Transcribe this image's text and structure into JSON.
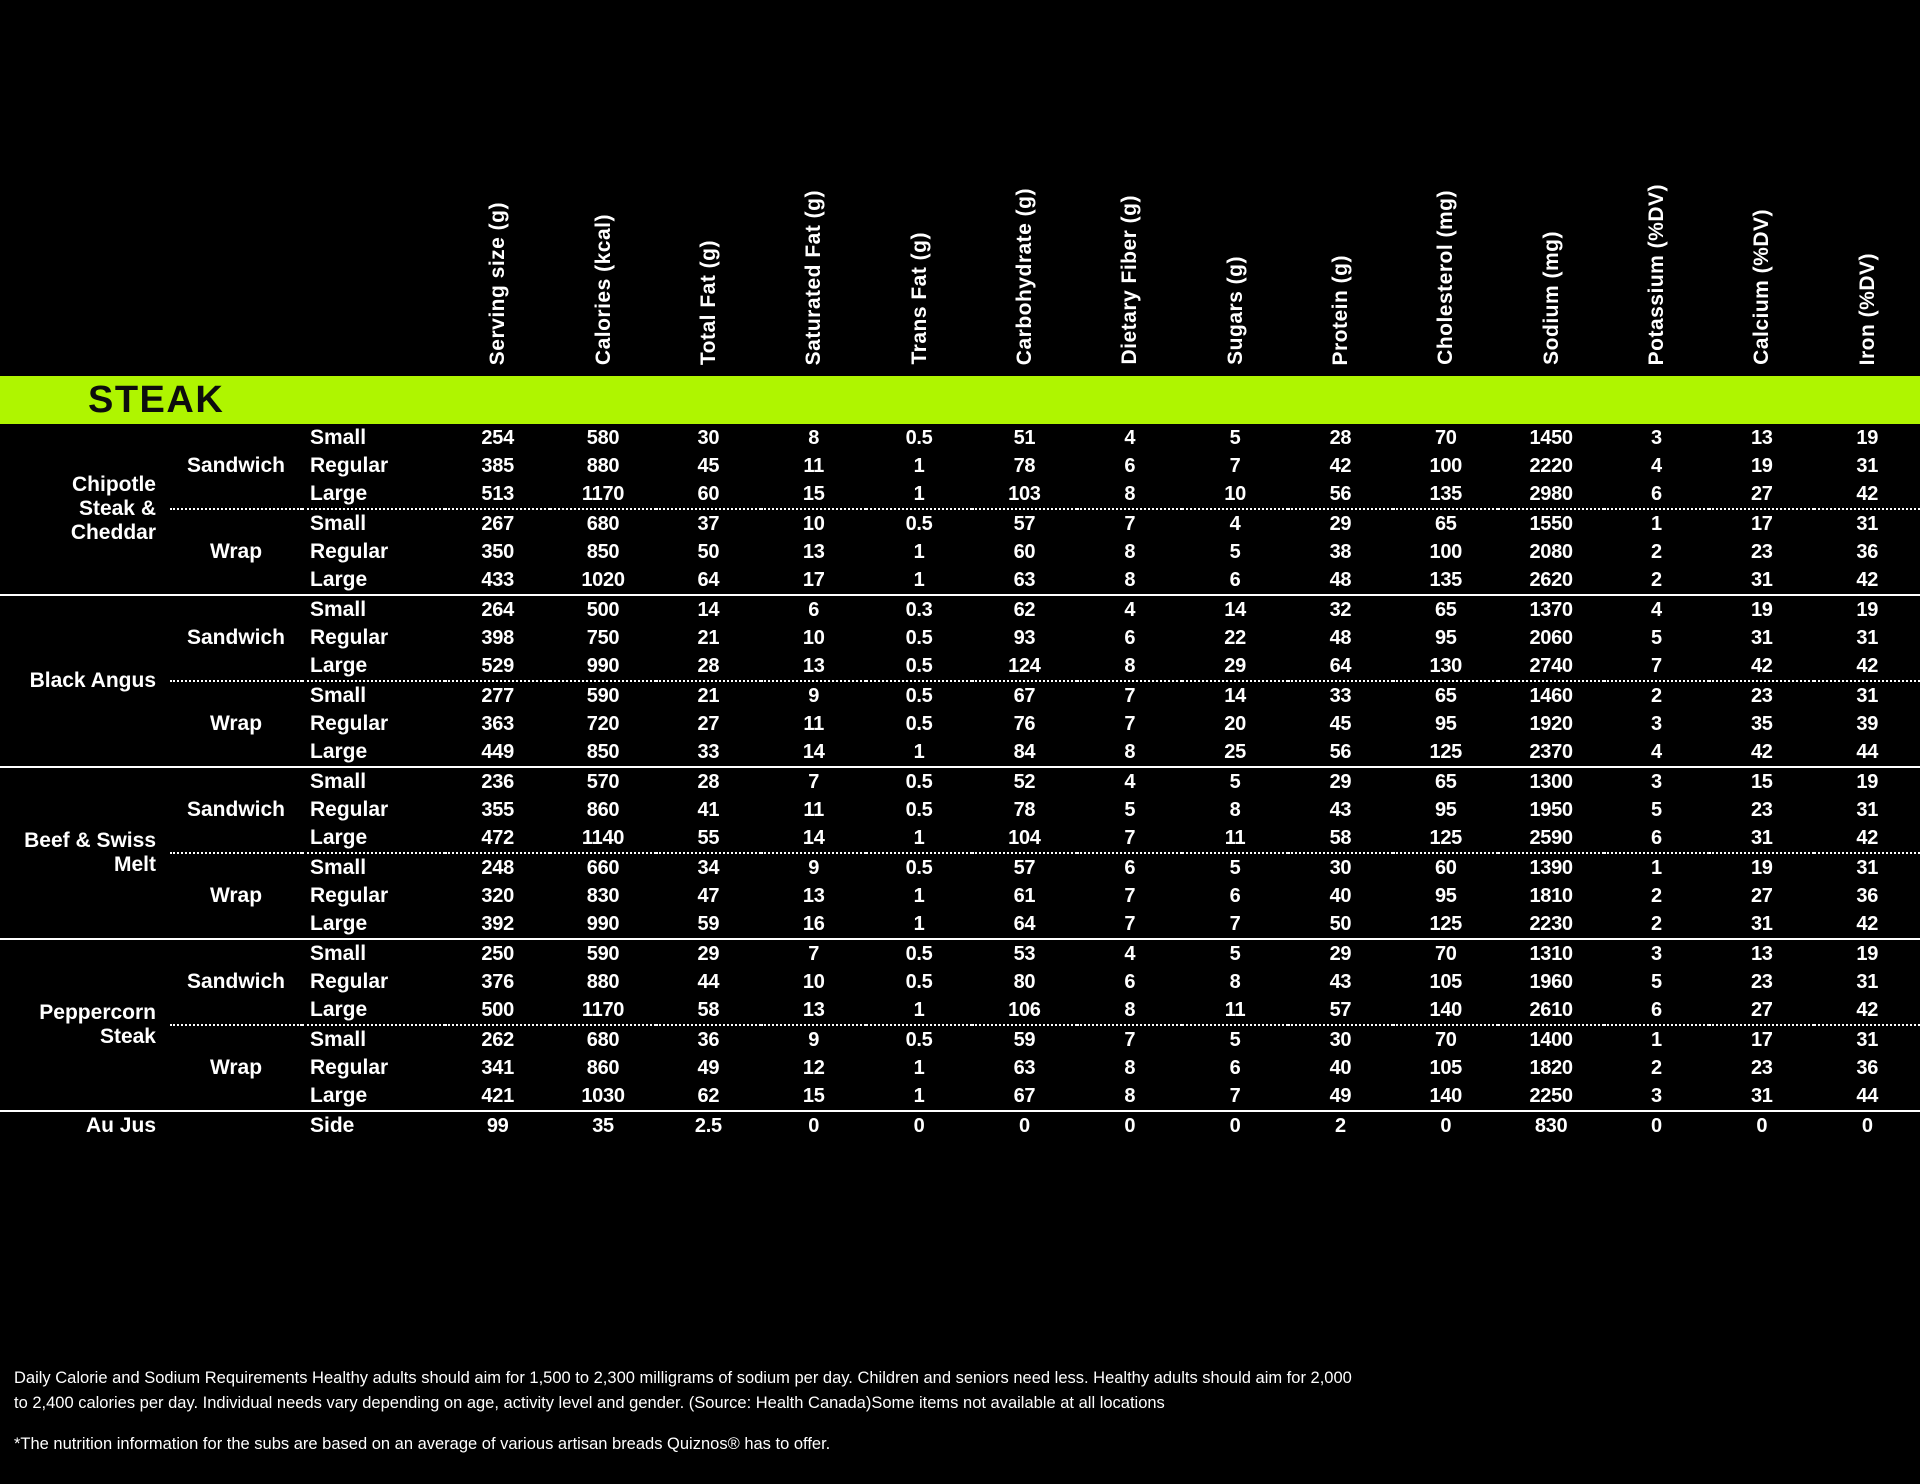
{
  "table": {
    "section_title": "STEAK",
    "accent_color": "#aff500",
    "columns": [
      "Serving size (g)",
      "Calories (kcal)",
      "Total Fat (g)",
      "Saturated Fat (g)",
      "Trans Fat (g)",
      "Carbohydrate (g)",
      "Dietary Fiber (g)",
      "Sugars (g)",
      "Protein (g)",
      "Cholesterol (mg)",
      "Sodium (mg)",
      "Potassium (%DV)",
      "Calcium (%DV)",
      "Iron (%DV)"
    ],
    "groups": [
      {
        "name": "Chipotle Steak & Cheddar",
        "subgroups": [
          {
            "type": "Sandwich",
            "rows": [
              {
                "size": "Small",
                "values": [
                  254,
                  580,
                  30,
                  8,
                  0.5,
                  51,
                  4,
                  5,
                  28,
                  70,
                  1450,
                  3,
                  13,
                  19
                ]
              },
              {
                "size": "Regular",
                "values": [
                  385,
                  880,
                  45,
                  11,
                  1,
                  78,
                  6,
                  7,
                  42,
                  100,
                  2220,
                  4,
                  19,
                  31
                ]
              },
              {
                "size": "Large",
                "values": [
                  513,
                  1170,
                  60,
                  15,
                  1,
                  103,
                  8,
                  10,
                  56,
                  135,
                  2980,
                  6,
                  27,
                  42
                ]
              }
            ]
          },
          {
            "type": "Wrap",
            "rows": [
              {
                "size": "Small",
                "values": [
                  267,
                  680,
                  37,
                  10,
                  0.5,
                  57,
                  7,
                  4,
                  29,
                  65,
                  1550,
                  1,
                  17,
                  31
                ]
              },
              {
                "size": "Regular",
                "values": [
                  350,
                  850,
                  50,
                  13,
                  1,
                  60,
                  8,
                  5,
                  38,
                  100,
                  2080,
                  2,
                  23,
                  36
                ]
              },
              {
                "size": "Large",
                "values": [
                  433,
                  1020,
                  64,
                  17,
                  1,
                  63,
                  8,
                  6,
                  48,
                  135,
                  2620,
                  2,
                  31,
                  42
                ]
              }
            ]
          }
        ]
      },
      {
        "name": "Black Angus",
        "subgroups": [
          {
            "type": "Sandwich",
            "rows": [
              {
                "size": "Small",
                "values": [
                  264,
                  500,
                  14,
                  6,
                  0.3,
                  62,
                  4,
                  14,
                  32,
                  65,
                  1370,
                  4,
                  19,
                  19
                ]
              },
              {
                "size": "Regular",
                "values": [
                  398,
                  750,
                  21,
                  10,
                  0.5,
                  93,
                  6,
                  22,
                  48,
                  95,
                  2060,
                  5,
                  31,
                  31
                ]
              },
              {
                "size": "Large",
                "values": [
                  529,
                  990,
                  28,
                  13,
                  0.5,
                  124,
                  8,
                  29,
                  64,
                  130,
                  2740,
                  7,
                  42,
                  42
                ]
              }
            ]
          },
          {
            "type": "Wrap",
            "rows": [
              {
                "size": "Small",
                "values": [
                  277,
                  590,
                  21,
                  9,
                  0.5,
                  67,
                  7,
                  14,
                  33,
                  65,
                  1460,
                  2,
                  23,
                  31
                ]
              },
              {
                "size": "Regular",
                "values": [
                  363,
                  720,
                  27,
                  11,
                  0.5,
                  76,
                  7,
                  20,
                  45,
                  95,
                  1920,
                  3,
                  35,
                  39
                ]
              },
              {
                "size": "Large",
                "values": [
                  449,
                  850,
                  33,
                  14,
                  1,
                  84,
                  8,
                  25,
                  56,
                  125,
                  2370,
                  4,
                  42,
                  44
                ]
              }
            ]
          }
        ]
      },
      {
        "name": "Beef & Swiss Melt",
        "subgroups": [
          {
            "type": "Sandwich",
            "rows": [
              {
                "size": "Small",
                "values": [
                  236,
                  570,
                  28,
                  7,
                  0.5,
                  52,
                  4,
                  5,
                  29,
                  65,
                  1300,
                  3,
                  15,
                  19
                ]
              },
              {
                "size": "Regular",
                "values": [
                  355,
                  860,
                  41,
                  11,
                  0.5,
                  78,
                  5,
                  8,
                  43,
                  95,
                  1950,
                  5,
                  23,
                  31
                ]
              },
              {
                "size": "Large",
                "values": [
                  472,
                  1140,
                  55,
                  14,
                  1,
                  104,
                  7,
                  11,
                  58,
                  125,
                  2590,
                  6,
                  31,
                  42
                ]
              }
            ]
          },
          {
            "type": "Wrap",
            "rows": [
              {
                "size": "Small",
                "values": [
                  248,
                  660,
                  34,
                  9,
                  0.5,
                  57,
                  6,
                  5,
                  30,
                  60,
                  1390,
                  1,
                  19,
                  31
                ]
              },
              {
                "size": "Regular",
                "values": [
                  320,
                  830,
                  47,
                  13,
                  1,
                  61,
                  7,
                  6,
                  40,
                  95,
                  1810,
                  2,
                  27,
                  36
                ]
              },
              {
                "size": "Large",
                "values": [
                  392,
                  990,
                  59,
                  16,
                  1,
                  64,
                  7,
                  7,
                  50,
                  125,
                  2230,
                  2,
                  31,
                  42
                ]
              }
            ]
          }
        ]
      },
      {
        "name": "Peppercorn Steak",
        "subgroups": [
          {
            "type": "Sandwich",
            "rows": [
              {
                "size": "Small",
                "values": [
                  250,
                  590,
                  29,
                  7,
                  0.5,
                  53,
                  4,
                  5,
                  29,
                  70,
                  1310,
                  3,
                  13,
                  19
                ]
              },
              {
                "size": "Regular",
                "values": [
                  376,
                  880,
                  44,
                  10,
                  0.5,
                  80,
                  6,
                  8,
                  43,
                  105,
                  1960,
                  5,
                  23,
                  31
                ]
              },
              {
                "size": "Large",
                "values": [
                  500,
                  1170,
                  58,
                  13,
                  1,
                  106,
                  8,
                  11,
                  57,
                  140,
                  2610,
                  6,
                  27,
                  42
                ]
              }
            ]
          },
          {
            "type": "Wrap",
            "rows": [
              {
                "size": "Small",
                "values": [
                  262,
                  680,
                  36,
                  9,
                  0.5,
                  59,
                  7,
                  5,
                  30,
                  70,
                  1400,
                  1,
                  17,
                  31
                ]
              },
              {
                "size": "Regular",
                "values": [
                  341,
                  860,
                  49,
                  12,
                  1,
                  63,
                  8,
                  6,
                  40,
                  105,
                  1820,
                  2,
                  23,
                  36
                ]
              },
              {
                "size": "Large",
                "values": [
                  421,
                  1030,
                  62,
                  15,
                  1,
                  67,
                  8,
                  7,
                  49,
                  140,
                  2250,
                  3,
                  31,
                  44
                ]
              }
            ]
          }
        ]
      },
      {
        "name": "Au Jus",
        "subgroups": [
          {
            "type": "",
            "rows": [
              {
                "size": "Side",
                "values": [
                  99,
                  35,
                  2.5,
                  0,
                  0,
                  0,
                  0,
                  0,
                  2,
                  0,
                  830,
                  0,
                  0,
                  0
                ]
              }
            ]
          }
        ]
      }
    ]
  },
  "footer": {
    "note1": "Daily Calorie and Sodium Requirements Healthy adults should aim for 1,500 to 2,300 milligrams of sodium per day. Children and seniors need less. Healthy adults should aim for 2,000 to 2,400 calories per day. Individual needs vary depending on age, activity level and gender. (Source: Health Canada)Some items not available at all locations",
    "note2": "*The nutrition information for the subs are based on an average of various artisan breads Quiznos® has to offer."
  }
}
